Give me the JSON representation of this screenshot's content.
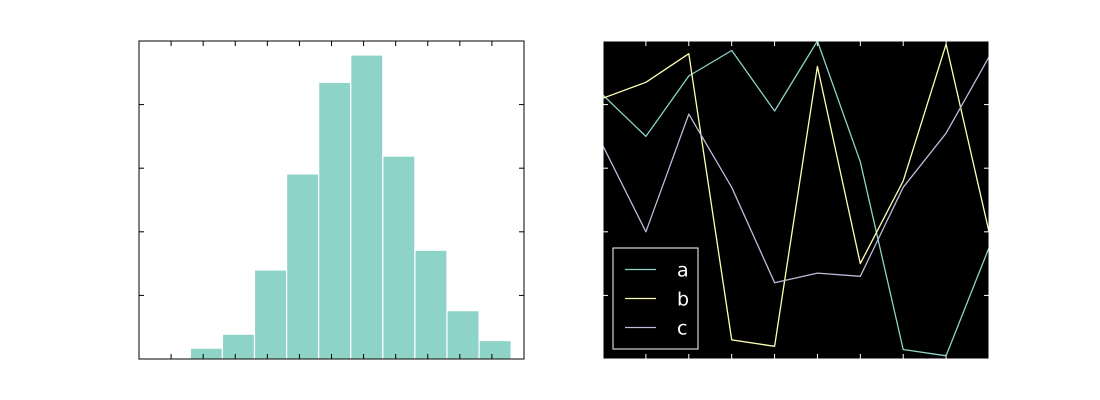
{
  "chart_data": [
    {
      "type": "bar",
      "subtype": "histogram",
      "facecolor": "#ffffff",
      "grid": false,
      "tick_labels_shown": false,
      "bar_color": "#8dd3c7",
      "edge_color": "#ffffff",
      "xlim": [
        0,
        12
      ],
      "ylim": [
        0,
        5
      ],
      "bins": [
        {
          "x0": 1.6,
          "x1": 2.6,
          "value": 0.17
        },
        {
          "x0": 2.6,
          "x1": 3.6,
          "value": 0.39
        },
        {
          "x0": 3.6,
          "x1": 4.6,
          "value": 1.4
        },
        {
          "x0": 4.6,
          "x1": 5.6,
          "value": 2.91
        },
        {
          "x0": 5.6,
          "x1": 6.6,
          "value": 4.35
        },
        {
          "x0": 6.6,
          "x1": 7.6,
          "value": 4.78
        },
        {
          "x0": 7.6,
          "x1": 8.6,
          "value": 3.19
        },
        {
          "x0": 8.6,
          "x1": 9.6,
          "value": 1.71
        },
        {
          "x0": 9.6,
          "x1": 10.6,
          "value": 0.76
        },
        {
          "x0": 10.6,
          "x1": 11.6,
          "value": 0.29
        }
      ],
      "xticks": [
        0,
        1,
        2,
        3,
        4,
        5,
        6,
        7,
        8,
        9,
        10,
        11,
        12
      ],
      "yticks": [
        0,
        1,
        2,
        3,
        4,
        5
      ]
    },
    {
      "type": "line",
      "facecolor": "#000000",
      "grid": false,
      "tick_labels_shown": false,
      "legend_position": "lower-left",
      "x": [
        0,
        1,
        2,
        3,
        4,
        5,
        6,
        7,
        8,
        9
      ],
      "xlim": [
        0,
        9
      ],
      "ylim": [
        0,
        1
      ],
      "xticks": [
        0,
        1,
        2,
        3,
        4,
        5,
        6,
        7,
        8,
        9
      ],
      "yticks": [
        0,
        0.2,
        0.4,
        0.6,
        0.8,
        1.0
      ],
      "series": [
        {
          "name": "a",
          "color": "#8dd3c7",
          "values": [
            0.83,
            0.7,
            0.89,
            0.97,
            0.78,
            1.0,
            0.62,
            0.03,
            0.01,
            0.35
          ]
        },
        {
          "name": "b",
          "color": "#ffffb3",
          "values": [
            0.82,
            0.87,
            0.96,
            0.06,
            0.04,
            0.92,
            0.3,
            0.56,
            0.99,
            0.4
          ]
        },
        {
          "name": "c",
          "color": "#bebada",
          "values": [
            0.67,
            0.4,
            0.77,
            0.54,
            0.24,
            0.27,
            0.26,
            0.54,
            0.71,
            0.95
          ]
        }
      ]
    }
  ]
}
